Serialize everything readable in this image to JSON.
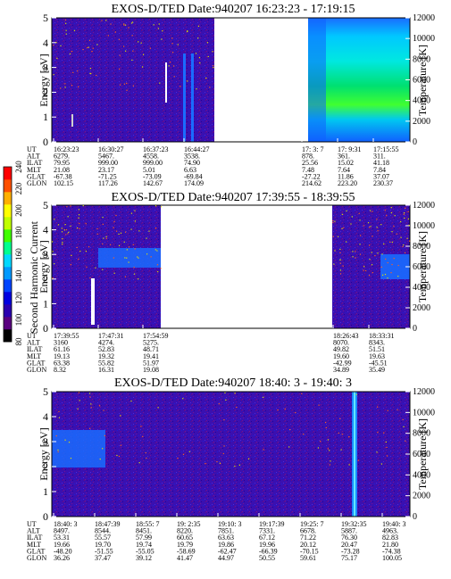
{
  "chart_data": [
    {
      "type": "heatmap",
      "title": "EXOS-D/TED Date:940207 16:23:23 - 17:19:15",
      "ylabel": "Energy [eV]",
      "ylabel_right": "Temperature [K]",
      "ylim": [
        0,
        5
      ],
      "yticks": [
        "0",
        "1",
        "2",
        "3",
        "4",
        "5"
      ],
      "ylim_right": [
        0,
        12000
      ],
      "yticks_right": [
        "0",
        "2000",
        "4000",
        "6000",
        "8000",
        "10000",
        "12000"
      ],
      "table_labels": [
        "UT",
        "ALT",
        "ILAT",
        "MLT",
        "GLAT",
        "GLON"
      ],
      "table_columns": [
        [
          "16:23:23",
          "6279.",
          "79.95",
          "21.08",
          "-67.38",
          "102.15"
        ],
        [
          "16:30:27",
          "5467.",
          "999.00",
          "23.17",
          "-71.25",
          "117.26"
        ],
        [
          "16:37:23",
          "4558.",
          "999.00",
          "5.01",
          "-73.09",
          "142.67"
        ],
        [
          "16:44:27",
          "3538.",
          "74.90",
          "6.63",
          "-69.84",
          "174.09"
        ],
        [
          "17: 3: 7",
          "878.",
          "25.56",
          "7.48",
          "-27.22",
          "214.62"
        ],
        [
          "17: 9:31",
          "361.",
          "15.02",
          "7.64",
          "11.86",
          "223.20"
        ],
        [
          "17:15:55",
          "311.",
          "41.18",
          "7.84",
          "37.07",
          "230.37"
        ]
      ],
      "data_segments": [
        {
          "from": "16:23:23",
          "to": "16:46:30",
          "level": "low"
        },
        {
          "from": "17:02:00",
          "to": "17:19:15",
          "level": "high"
        }
      ]
    },
    {
      "type": "heatmap",
      "title": "EXOS-D/TED Date:940207 17:39:55 - 18:39:55",
      "ylabel": "Energy [eV]",
      "ylabel_right": "Temperature [K]",
      "ylim": [
        0,
        5
      ],
      "yticks": [
        "0",
        "1",
        "2",
        "3",
        "4",
        "5"
      ],
      "ylim_right": [
        0,
        12000
      ],
      "yticks_right": [
        "0",
        "2000",
        "4000",
        "6000",
        "8000",
        "10000",
        "12000"
      ],
      "colorbar": {
        "label": "Second Harmonic Current",
        "ticks": [
          "80",
          "100",
          "120",
          "140",
          "160",
          "180",
          "200",
          "220",
          "240"
        ],
        "colors": [
          "#000000",
          "#5a0080",
          "#2a00b0",
          "#0000e0",
          "#0044ff",
          "#0099ff",
          "#00d8ff",
          "#00ff90",
          "#40ff00",
          "#c0ff00",
          "#ffff00",
          "#ffb000",
          "#ff5000",
          "#ff0000"
        ]
      },
      "table_labels": [
        "UT",
        "ALT",
        "ILAT",
        "MLT",
        "GLAT",
        "GLON"
      ],
      "table_columns": [
        [
          "17:39:55",
          "3160",
          "61.16",
          "19.13",
          "63.38",
          "8.32"
        ],
        [
          "17:47:31",
          "4274.",
          "52.83",
          "19.32",
          "55.82",
          "16.31"
        ],
        [
          "17:54:59",
          "5275.",
          "48.71",
          "19.41",
          "51.97",
          "19.08"
        ],
        [
          "18:26:43",
          "8070.",
          "49.82",
          "19.60",
          "-42.99",
          "34.89"
        ],
        [
          "18:33:31",
          "8343.",
          "51.51",
          "19.63",
          "-45.51",
          "35.49"
        ]
      ],
      "data_segments": [
        {
          "from": "17:39:55",
          "to": "17:58:30",
          "level": "low"
        },
        {
          "from": "18:26:00",
          "to": "18:39:55",
          "level": "low"
        }
      ]
    },
    {
      "type": "heatmap",
      "title": "EXOS-D/TED Date:940207 18:40: 3 - 19:40: 3",
      "ylabel": "Energy [eV]",
      "ylabel_right": "Temperature [K]",
      "ylim": [
        0,
        5
      ],
      "yticks": [
        "0",
        "1",
        "2",
        "3",
        "4",
        "5"
      ],
      "ylim_right": [
        0,
        12000
      ],
      "yticks_right": [
        "0",
        "2000",
        "4000",
        "6000",
        "8000",
        "10000",
        "12000"
      ],
      "table_labels": [
        "UT",
        "ALT",
        "ILAT",
        "MLT",
        "GLAT",
        "GLON"
      ],
      "table_columns": [
        [
          "18:40: 3",
          "8497.",
          "53.31",
          "19.66",
          "-48.20",
          "36.26"
        ],
        [
          "18:47:39",
          "8544.",
          "55.57",
          "19.70",
          "-51.55",
          "37.47"
        ],
        [
          "18:55: 7",
          "8451.",
          "57.99",
          "19.74",
          "-55.05",
          "39.12"
        ],
        [
          "19: 2:35",
          "8220.",
          "60.65",
          "19.79",
          "-58.69",
          "41.47"
        ],
        [
          "19:10: 3",
          "7851.",
          "63.63",
          "19.86",
          "-62.47",
          "44.97"
        ],
        [
          "19:17:39",
          "7331.",
          "67.12",
          "19.96",
          "-66.39",
          "50.55"
        ],
        [
          "19:25: 7",
          "6678.",
          "71.22",
          "20.12",
          "-70.15",
          "59.61"
        ],
        [
          "19:32:35",
          "5887.",
          "76.30",
          "20.47",
          "-73.28",
          "75.17"
        ],
        [
          "19:40: 3",
          "4963.",
          "82.83",
          "21.80",
          "-74.38",
          "100.05"
        ]
      ],
      "data_segments": [
        {
          "from": "18:40:03",
          "to": "19:40:03",
          "level": "low"
        }
      ]
    }
  ]
}
